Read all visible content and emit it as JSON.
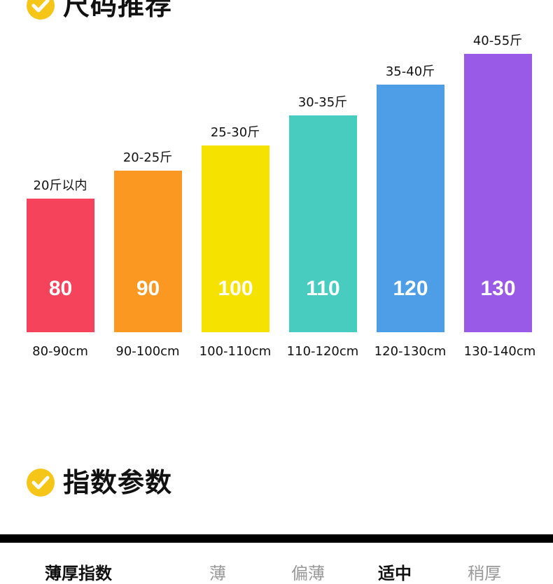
{
  "sections": {
    "size_recommend_title": "尺码推荐",
    "index_params_title": "指数参数"
  },
  "colors": {
    "check_icon": "#f5c518",
    "bar_80": "#f5435c",
    "bar_90": "#fb9822",
    "bar_100": "#f5e200",
    "bar_110": "#49ccc0",
    "bar_120": "#4d9ee6",
    "bar_130": "#9a5ae8"
  },
  "sizes": [
    {
      "size": "80",
      "weight": "20斤以内",
      "height": "80-90cm",
      "level": 0.48
    },
    {
      "size": "90",
      "weight": "20-25斤",
      "height": "90-100cm",
      "level": 0.58
    },
    {
      "size": "100",
      "weight": "25-30斤",
      "height": "100-110cm",
      "level": 0.67
    },
    {
      "size": "110",
      "weight": "30-35斤",
      "height": "110-120cm",
      "level": 0.78
    },
    {
      "size": "120",
      "weight": "35-40斤",
      "height": "120-130cm",
      "level": 0.89
    },
    {
      "size": "130",
      "weight": "40-55斤",
      "height": "130-140cm",
      "level": 1.0
    }
  ],
  "thickness": {
    "label": "薄厚指数",
    "options": [
      "薄",
      "偏薄",
      "适中",
      "稍厚"
    ],
    "selected": "适中"
  }
}
